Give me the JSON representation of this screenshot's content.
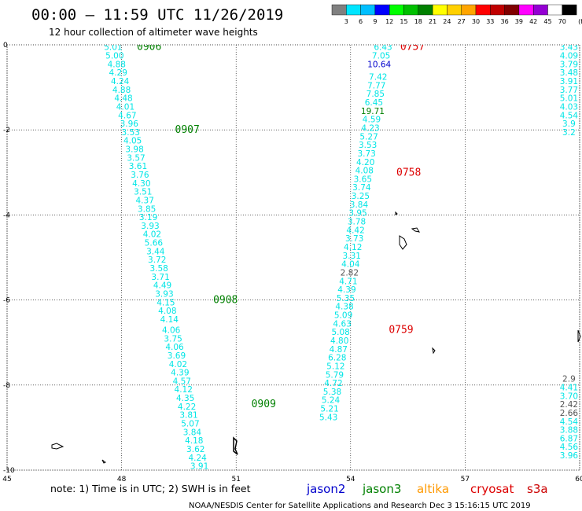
{
  "header": {
    "title": "00:00 – 11:59 UTC 11/26/2019",
    "subtitle": "12 hour collection of altimeter wave heights"
  },
  "colorbar": {
    "labels": [
      "3",
      "6",
      "9",
      "12",
      "15",
      "18",
      "21",
      "24",
      "27",
      "30",
      "33",
      "36",
      "39",
      "42",
      "45",
      "70",
      "(ft)"
    ],
    "colors": [
      "#808080",
      "#00e5ff",
      "#00bfff",
      "#0000ff",
      "#00ff00",
      "#00c000",
      "#008000",
      "#ffff00",
      "#ffd000",
      "#ffa500",
      "#ff0000",
      "#c00000",
      "#800000",
      "#ff00ff",
      "#9400d3",
      "#ffffff",
      "#000000"
    ]
  },
  "footer": {
    "note": "note:  1) Time is in UTC;  2) SWH is in feet",
    "credit": "NOAA/NESDIS Center for Satellite Applications and Research     Dec  3 15:16:15 UTC 2019",
    "satellites": [
      {
        "name": "jason2",
        "color": "#0000cc"
      },
      {
        "name": "jason3",
        "color": "#008000"
      },
      {
        "name": "altika",
        "color": "#ff9900"
      },
      {
        "name": "cryosat",
        "color": "#dd0000"
      },
      {
        "name": "s3a",
        "color": "#cc0000"
      }
    ]
  },
  "chart_data": {
    "type": "scatter",
    "xlim": [
      45,
      60
    ],
    "ylim": [
      -10,
      0
    ],
    "x_ticks": [
      "45",
      "48",
      "51",
      "54",
      "57",
      "60"
    ],
    "y_ticks": [
      "0",
      "-2",
      "-4",
      "-6",
      "-8",
      "-10"
    ],
    "grid": true,
    "grid_style": "dotted",
    "value_color": "#00e5e5",
    "tracks": [
      {
        "name": "track-1",
        "time_labels": [
          {
            "text": "0906",
            "x": 48.4,
            "y": -0.05,
            "color": "#008000"
          },
          {
            "text": "0907",
            "x": 49.4,
            "y": -2.0,
            "color": "#008000"
          },
          {
            "text": "0908",
            "x": 50.4,
            "y": -6.0,
            "color": "#008000"
          },
          {
            "text": "0909",
            "x": 51.4,
            "y": -8.45,
            "color": "#008000"
          }
        ],
        "points": [
          {
            "lon": 47.78,
            "lat": -0.05,
            "swh": "5.01"
          },
          {
            "lon": 47.82,
            "lat": -0.25,
            "swh": "5.00"
          },
          {
            "lon": 47.87,
            "lat": -0.45,
            "swh": "4.88"
          },
          {
            "lon": 47.91,
            "lat": -0.65,
            "swh": "4.29"
          },
          {
            "lon": 47.96,
            "lat": -0.85,
            "swh": "4.24"
          },
          {
            "lon": 48.0,
            "lat": -1.05,
            "swh": "4.88"
          },
          {
            "lon": 48.05,
            "lat": -1.25,
            "swh": "4.48"
          },
          {
            "lon": 48.1,
            "lat": -1.45,
            "swh": "4.01"
          },
          {
            "lon": 48.15,
            "lat": -1.65,
            "swh": "4.67"
          },
          {
            "lon": 48.2,
            "lat": -1.85,
            "swh": "3.96"
          },
          {
            "lon": 48.24,
            "lat": -2.05,
            "swh": "3.53"
          },
          {
            "lon": 48.29,
            "lat": -2.25,
            "swh": "4.05"
          },
          {
            "lon": 48.34,
            "lat": -2.45,
            "swh": "3.98"
          },
          {
            "lon": 48.38,
            "lat": -2.65,
            "swh": "3.57"
          },
          {
            "lon": 48.43,
            "lat": -2.85,
            "swh": "3.61"
          },
          {
            "lon": 48.48,
            "lat": -3.05,
            "swh": "3.76"
          },
          {
            "lon": 48.52,
            "lat": -3.25,
            "swh": "4.30"
          },
          {
            "lon": 48.56,
            "lat": -3.45,
            "swh": "3.51"
          },
          {
            "lon": 48.61,
            "lat": -3.65,
            "swh": "4.37"
          },
          {
            "lon": 48.66,
            "lat": -3.85,
            "swh": "3.85"
          },
          {
            "lon": 48.7,
            "lat": -4.05,
            "swh": "3.19"
          },
          {
            "lon": 48.75,
            "lat": -4.25,
            "swh": "3.93"
          },
          {
            "lon": 48.8,
            "lat": -4.45,
            "swh": "4.02"
          },
          {
            "lon": 48.84,
            "lat": -4.65,
            "swh": "5.66"
          },
          {
            "lon": 48.89,
            "lat": -4.85,
            "swh": "3.44"
          },
          {
            "lon": 48.93,
            "lat": -5.05,
            "swh": "3.72"
          },
          {
            "lon": 48.98,
            "lat": -5.25,
            "swh": "3.58"
          },
          {
            "lon": 49.02,
            "lat": -5.45,
            "swh": "3.71"
          },
          {
            "lon": 49.07,
            "lat": -5.65,
            "swh": "4.49"
          },
          {
            "lon": 49.12,
            "lat": -5.85,
            "swh": "3.93"
          },
          {
            "lon": 49.16,
            "lat": -6.05,
            "swh": "4.15"
          },
          {
            "lon": 49.2,
            "lat": -6.25,
            "swh": "4.08"
          },
          {
            "lon": 49.25,
            "lat": -6.45,
            "swh": "4.14"
          },
          {
            "lon": 49.3,
            "lat": -6.7,
            "swh": "4.06"
          },
          {
            "lon": 49.35,
            "lat": -6.9,
            "swh": "3.75"
          },
          {
            "lon": 49.39,
            "lat": -7.1,
            "swh": "4.06"
          },
          {
            "lon": 49.44,
            "lat": -7.3,
            "swh": "3.69"
          },
          {
            "lon": 49.48,
            "lat": -7.5,
            "swh": "4.02"
          },
          {
            "lon": 49.53,
            "lat": -7.7,
            "swh": "4.39"
          },
          {
            "lon": 49.58,
            "lat": -7.9,
            "swh": "4.57"
          },
          {
            "lon": 49.62,
            "lat": -8.1,
            "swh": "4.12"
          },
          {
            "lon": 49.67,
            "lat": -8.3,
            "swh": "4.35"
          },
          {
            "lon": 49.71,
            "lat": -8.5,
            "swh": "4.22"
          },
          {
            "lon": 49.76,
            "lat": -8.7,
            "swh": "3.81"
          },
          {
            "lon": 49.8,
            "lat": -8.9,
            "swh": "5.07"
          },
          {
            "lon": 49.85,
            "lat": -9.1,
            "swh": "3.84"
          },
          {
            "lon": 49.9,
            "lat": -9.3,
            "swh": "4.18"
          },
          {
            "lon": 49.94,
            "lat": -9.5,
            "swh": "3.62"
          },
          {
            "lon": 49.99,
            "lat": -9.7,
            "swh": "4.24"
          },
          {
            "lon": 50.04,
            "lat": -9.9,
            "swh": "3.91"
          }
        ]
      },
      {
        "name": "track-2",
        "time_labels": [
          {
            "text": "0757",
            "x": 55.3,
            "y": -0.05,
            "color": "#dd0000"
          },
          {
            "text": "0758",
            "x": 55.2,
            "y": -3.0,
            "color": "#dd0000"
          },
          {
            "text": "0759",
            "x": 55.0,
            "y": -6.7,
            "color": "#dd0000"
          }
        ],
        "points": [
          {
            "lon": 54.85,
            "lat": -0.05,
            "swh": "6.43"
          },
          {
            "lon": 54.8,
            "lat": -0.25,
            "swh": "7.05"
          },
          {
            "lon": 54.75,
            "lat": -0.45,
            "swh": "10.64",
            "color": "#0000cc"
          },
          {
            "lon": 54.72,
            "lat": -0.75,
            "swh": "7.42"
          },
          {
            "lon": 54.68,
            "lat": -0.95,
            "swh": "7.77"
          },
          {
            "lon": 54.65,
            "lat": -1.15,
            "swh": "7.85"
          },
          {
            "lon": 54.61,
            "lat": -1.35,
            "swh": "6.45"
          },
          {
            "lon": 54.58,
            "lat": -1.55,
            "swh": "19.71",
            "color": "#008000"
          },
          {
            "lon": 54.55,
            "lat": -1.75,
            "swh": "4.59"
          },
          {
            "lon": 54.52,
            "lat": -1.95,
            "swh": "4.23"
          },
          {
            "lon": 54.48,
            "lat": -2.15,
            "swh": "5.27"
          },
          {
            "lon": 54.45,
            "lat": -2.35,
            "swh": "3.53"
          },
          {
            "lon": 54.42,
            "lat": -2.55,
            "swh": "3.73"
          },
          {
            "lon": 54.39,
            "lat": -2.75,
            "swh": "4.20"
          },
          {
            "lon": 54.36,
            "lat": -2.95,
            "swh": "4.08"
          },
          {
            "lon": 54.32,
            "lat": -3.15,
            "swh": "3.65"
          },
          {
            "lon": 54.29,
            "lat": -3.35,
            "swh": "3.74"
          },
          {
            "lon": 54.26,
            "lat": -3.55,
            "swh": "3.25"
          },
          {
            "lon": 54.22,
            "lat": -3.75,
            "swh": "3.84"
          },
          {
            "lon": 54.19,
            "lat": -3.95,
            "swh": "3.95"
          },
          {
            "lon": 54.16,
            "lat": -4.15,
            "swh": "3.78"
          },
          {
            "lon": 54.13,
            "lat": -4.35,
            "swh": "4.42"
          },
          {
            "lon": 54.1,
            "lat": -4.55,
            "swh": "3.73"
          },
          {
            "lon": 54.06,
            "lat": -4.75,
            "swh": "4.12"
          },
          {
            "lon": 54.03,
            "lat": -4.95,
            "swh": "3.31"
          },
          {
            "lon": 54.0,
            "lat": -5.15,
            "swh": "4.04"
          },
          {
            "lon": 53.97,
            "lat": -5.35,
            "swh": "2.82",
            "color": "#555555"
          },
          {
            "lon": 53.94,
            "lat": -5.55,
            "swh": "4.71"
          },
          {
            "lon": 53.9,
            "lat": -5.75,
            "swh": "4.39"
          },
          {
            "lon": 53.87,
            "lat": -5.95,
            "swh": "5.35"
          },
          {
            "lon": 53.84,
            "lat": -6.15,
            "swh": "4.38"
          },
          {
            "lon": 53.81,
            "lat": -6.35,
            "swh": "5.09"
          },
          {
            "lon": 53.78,
            "lat": -6.55,
            "swh": "4.63"
          },
          {
            "lon": 53.74,
            "lat": -6.75,
            "swh": "5.08"
          },
          {
            "lon": 53.71,
            "lat": -6.95,
            "swh": "4.80"
          },
          {
            "lon": 53.68,
            "lat": -7.15,
            "swh": "4.87"
          },
          {
            "lon": 53.65,
            "lat": -7.35,
            "swh": "6.28"
          },
          {
            "lon": 53.61,
            "lat": -7.55,
            "swh": "5.12"
          },
          {
            "lon": 53.58,
            "lat": -7.75,
            "swh": "5.79"
          },
          {
            "lon": 53.55,
            "lat": -7.95,
            "swh": "4.72"
          },
          {
            "lon": 53.52,
            "lat": -8.15,
            "swh": "5.38"
          },
          {
            "lon": 53.48,
            "lat": -8.35,
            "swh": "5.24"
          },
          {
            "lon": 53.45,
            "lat": -8.55,
            "swh": "5.21"
          },
          {
            "lon": 53.42,
            "lat": -8.75,
            "swh": "5.43"
          }
        ]
      },
      {
        "name": "track-3",
        "time_labels": [],
        "points": [
          {
            "lon": 59.72,
            "lat": -0.05,
            "swh": "3.43"
          },
          {
            "lon": 59.72,
            "lat": -0.25,
            "swh": "4.09"
          },
          {
            "lon": 59.72,
            "lat": -0.45,
            "swh": "3.79"
          },
          {
            "lon": 59.72,
            "lat": -0.65,
            "swh": "3.48"
          },
          {
            "lon": 59.72,
            "lat": -0.85,
            "swh": "3.91"
          },
          {
            "lon": 59.72,
            "lat": -1.05,
            "swh": "3.77"
          },
          {
            "lon": 59.72,
            "lat": -1.25,
            "swh": "5.01"
          },
          {
            "lon": 59.72,
            "lat": -1.45,
            "swh": "4.03"
          },
          {
            "lon": 59.72,
            "lat": -1.65,
            "swh": "4.54"
          },
          {
            "lon": 59.72,
            "lat": -1.85,
            "swh": "3.9"
          },
          {
            "lon": 59.72,
            "lat": -2.05,
            "swh": "3.2"
          },
          {
            "lon": 59.72,
            "lat": -7.85,
            "swh": "2.9",
            "color": "#555555"
          },
          {
            "lon": 59.72,
            "lat": -8.05,
            "swh": "4.41"
          },
          {
            "lon": 59.72,
            "lat": -8.25,
            "swh": "3.70"
          },
          {
            "lon": 59.72,
            "lat": -8.45,
            "swh": "2.42",
            "color": "#555555"
          },
          {
            "lon": 59.72,
            "lat": -8.65,
            "swh": "2.66",
            "color": "#555555"
          },
          {
            "lon": 59.72,
            "lat": -8.85,
            "swh": "4.54"
          },
          {
            "lon": 59.72,
            "lat": -9.05,
            "swh": "3.88"
          },
          {
            "lon": 59.72,
            "lat": -9.25,
            "swh": "6.87"
          },
          {
            "lon": 59.72,
            "lat": -9.45,
            "swh": "4.56"
          },
          {
            "lon": 59.72,
            "lat": -9.65,
            "swh": "3.96"
          }
        ]
      }
    ]
  }
}
